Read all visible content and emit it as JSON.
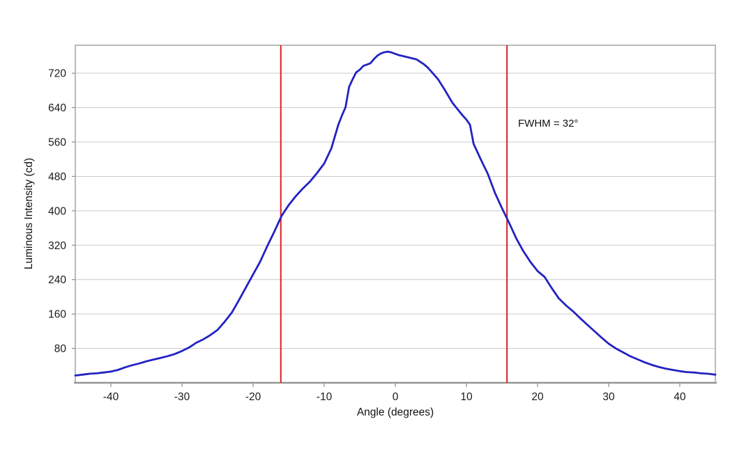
{
  "chart_data": {
    "type": "line",
    "title": "",
    "xlabel": "Angle (degrees)",
    "ylabel": "Luminous Intensity (cd)",
    "xlim": [
      -45,
      45
    ],
    "ylim": [
      0,
      785
    ],
    "x_ticks": [
      -40,
      -30,
      -20,
      -10,
      0,
      10,
      20,
      30,
      40
    ],
    "y_ticks": [
      80,
      160,
      240,
      320,
      400,
      480,
      560,
      640,
      720
    ],
    "grid": "horizontal",
    "legend": "none",
    "annotation": {
      "text": "FWHM = 32°",
      "x": 17.2,
      "y": 602
    },
    "fwhm_lines": [
      -16.1,
      15.7
    ],
    "fwhm_value_deg": 32,
    "peak_cd": 770,
    "half_max_cd": 385,
    "series": [
      {
        "name": "luminous-intensity-vs-angle",
        "points": [
          [
            -45,
            17
          ],
          [
            -44,
            19
          ],
          [
            -43,
            21
          ],
          [
            -42,
            22
          ],
          [
            -41,
            24
          ],
          [
            -40,
            26
          ],
          [
            -39,
            30
          ],
          [
            -38,
            36
          ],
          [
            -37,
            41
          ],
          [
            -36,
            45
          ],
          [
            -35,
            50
          ],
          [
            -34,
            54
          ],
          [
            -33,
            58
          ],
          [
            -32,
            62
          ],
          [
            -31,
            67
          ],
          [
            -30,
            74
          ],
          [
            -29,
            82
          ],
          [
            -28,
            93
          ],
          [
            -27,
            101
          ],
          [
            -26,
            111
          ],
          [
            -25,
            123
          ],
          [
            -24,
            142
          ],
          [
            -23,
            163
          ],
          [
            -22,
            192
          ],
          [
            -21,
            222
          ],
          [
            -20,
            252
          ],
          [
            -19,
            282
          ],
          [
            -18,
            318
          ],
          [
            -17,
            352
          ],
          [
            -16,
            388
          ],
          [
            -15,
            413
          ],
          [
            -14,
            434
          ],
          [
            -13,
            452
          ],
          [
            -12,
            468
          ],
          [
            -11,
            488
          ],
          [
            -10,
            510
          ],
          [
            -9,
            545
          ],
          [
            -8,
            601
          ],
          [
            -7.5,
            622
          ],
          [
            -7,
            641
          ],
          [
            -6.5,
            688
          ],
          [
            -6,
            706
          ],
          [
            -5.5,
            722
          ],
          [
            -5,
            728
          ],
          [
            -4.5,
            737
          ],
          [
            -4,
            740
          ],
          [
            -3.5,
            743
          ],
          [
            -3,
            753
          ],
          [
            -2.5,
            761
          ],
          [
            -2,
            766
          ],
          [
            -1.5,
            769
          ],
          [
            -1,
            770
          ],
          [
            -0.5,
            768
          ],
          [
            0,
            765
          ],
          [
            0.5,
            762
          ],
          [
            1,
            760
          ],
          [
            2,
            756
          ],
          [
            3,
            752
          ],
          [
            4,
            741
          ],
          [
            4.5,
            734
          ],
          [
            5,
            725
          ],
          [
            6,
            706
          ],
          [
            7,
            680
          ],
          [
            8,
            652
          ],
          [
            9,
            631
          ],
          [
            9.5,
            621
          ],
          [
            10,
            612
          ],
          [
            10.5,
            600
          ],
          [
            11,
            556
          ],
          [
            12,
            520
          ],
          [
            13,
            486
          ],
          [
            14,
            442
          ],
          [
            15,
            406
          ],
          [
            16,
            372
          ],
          [
            17,
            336
          ],
          [
            18,
            306
          ],
          [
            19,
            281
          ],
          [
            20,
            260
          ],
          [
            21,
            246
          ],
          [
            22,
            220
          ],
          [
            23,
            196
          ],
          [
            24,
            180
          ],
          [
            25,
            166
          ],
          [
            26,
            150
          ],
          [
            27,
            135
          ],
          [
            28,
            120
          ],
          [
            29,
            105
          ],
          [
            30,
            91
          ],
          [
            31,
            80
          ],
          [
            32,
            71
          ],
          [
            33,
            62
          ],
          [
            34,
            55
          ],
          [
            35,
            48
          ],
          [
            36,
            42
          ],
          [
            37,
            37
          ],
          [
            38,
            33
          ],
          [
            39,
            30
          ],
          [
            40,
            27
          ],
          [
            41,
            25
          ],
          [
            42,
            24
          ],
          [
            43,
            22
          ],
          [
            44,
            21
          ],
          [
            45,
            19
          ]
        ]
      }
    ],
    "colors": {
      "curve": "#2222c3",
      "fwhm_line": "#dc2026",
      "grid": "#c9c9c9",
      "frame": "#a8a8a8",
      "axis": "#949494",
      "tick": "#8c8c8c",
      "text": "#1a1a1a",
      "background": "#ffffff"
    }
  }
}
